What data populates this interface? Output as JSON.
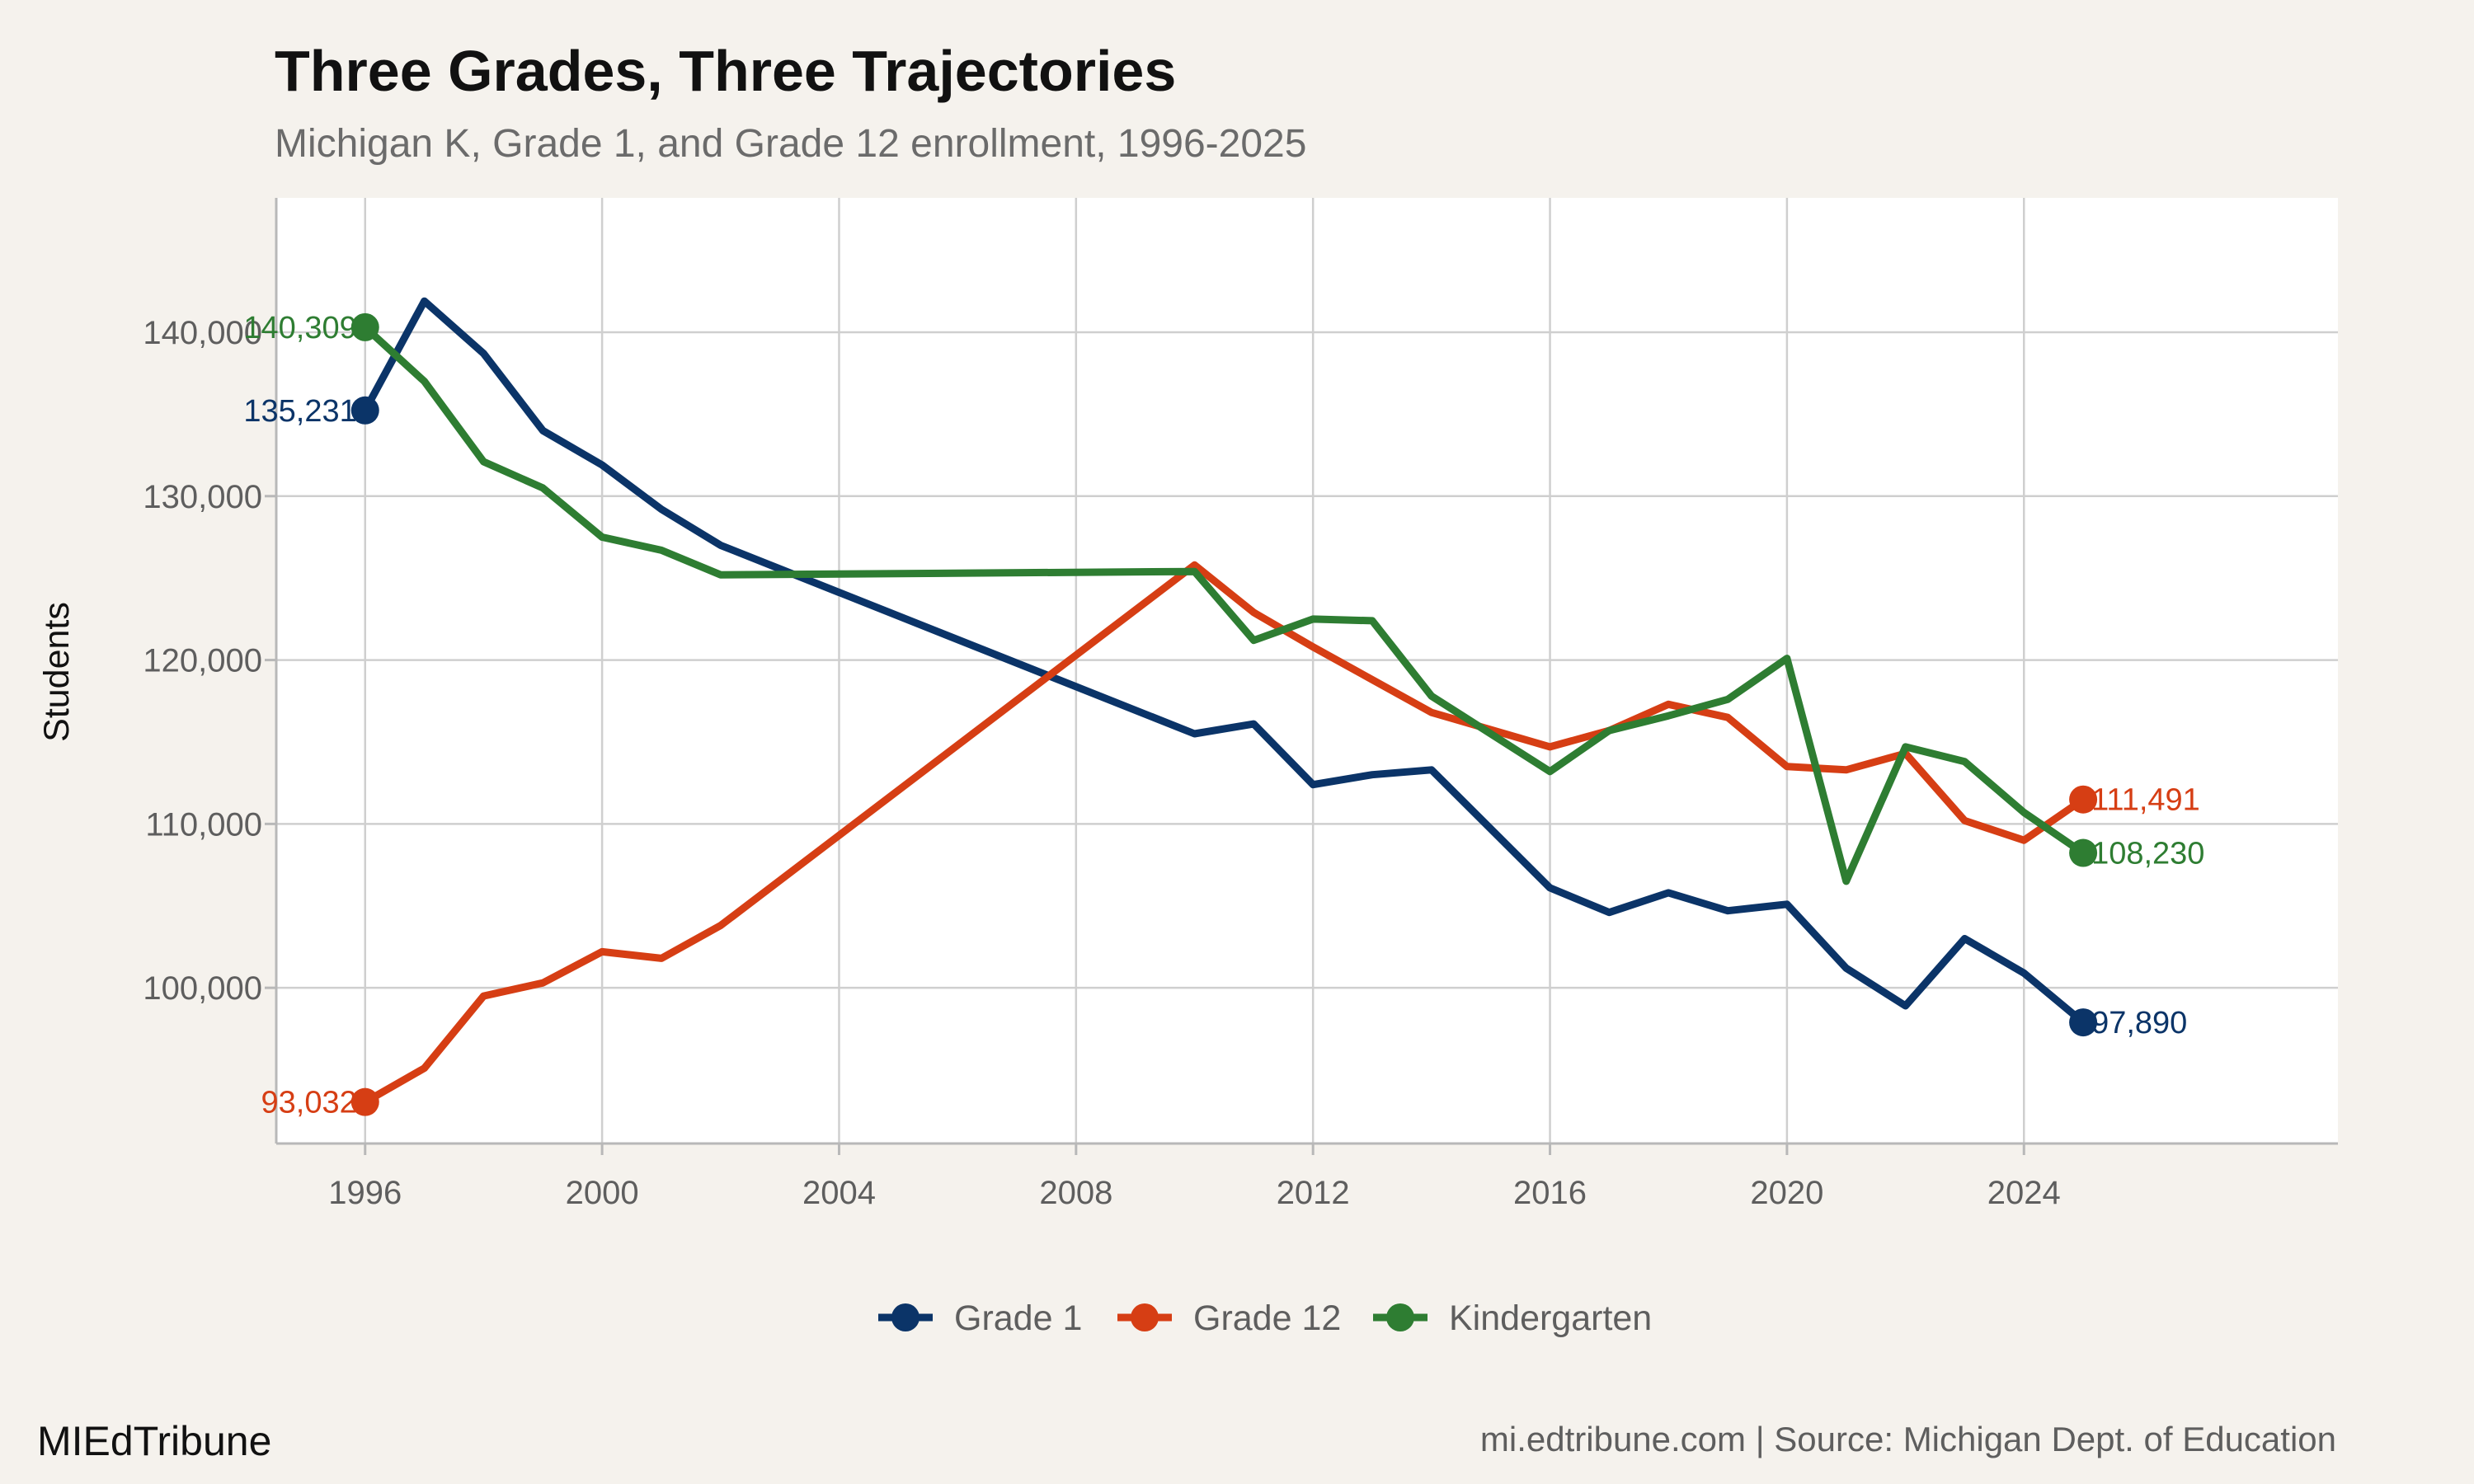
{
  "brand": "MIEdTribune",
  "source_note": "mi.edtribune.com | Source: Michigan Dept. of Education",
  "chart_data": {
    "type": "line",
    "title": "Three Grades, Three Trajectories",
    "subtitle": "Michigan K, Grade 1, and Grade 12 enrollment, 1996-2025",
    "xlabel": "",
    "ylabel": "Students",
    "xlim": [
      1994.5,
      2029.3
    ],
    "ylim": [
      90500,
      148200
    ],
    "xticks": [
      1996,
      2000,
      2004,
      2008,
      2012,
      2016,
      2020,
      2024
    ],
    "xtick_labels": [
      "1996",
      "2000",
      "2004",
      "2008",
      "2012",
      "2016",
      "2020",
      "2024"
    ],
    "yticks": [
      100000,
      110000,
      120000,
      130000,
      140000
    ],
    "ytick_labels": [
      "100,000",
      "110,000",
      "120,000",
      "130,000",
      "140,000"
    ],
    "grid": true,
    "legend_position": "bottom",
    "series": [
      {
        "name": "Grade 1",
        "color": "#0b3468",
        "x": [
          1996,
          1997,
          1998,
          1999,
          2000,
          2001,
          2002,
          2010,
          2011,
          2012,
          2013,
          2014,
          2016,
          2017,
          2018,
          2019,
          2020,
          2021,
          2022,
          2023,
          2024,
          2025
        ],
        "y": [
          135231,
          141900,
          138700,
          134000,
          131900,
          129200,
          127000,
          115500,
          116100,
          112400,
          113000,
          113300,
          106100,
          104600,
          105800,
          104700,
          105100,
          101200,
          98900,
          103000,
          100900,
          97890
        ],
        "start_label": "135,231",
        "end_label": "97,890"
      },
      {
        "name": "Grade 12",
        "color": "#d63e14",
        "x": [
          1996,
          1997,
          1998,
          1999,
          2000,
          2001,
          2002,
          2010,
          2011,
          2012,
          2013,
          2014,
          2016,
          2017,
          2018,
          2019,
          2020,
          2021,
          2022,
          2023,
          2024,
          2025
        ],
        "y": [
          93032,
          95100,
          99500,
          100300,
          102200,
          101800,
          103800,
          125800,
          122900,
          120800,
          118800,
          116800,
          114700,
          115700,
          117300,
          116500,
          113500,
          113300,
          114300,
          110200,
          109000,
          111491
        ],
        "start_label": "93,032",
        "end_label": "111,491"
      },
      {
        "name": "Kindergarten",
        "color": "#2e7d32",
        "x": [
          1996,
          1997,
          1998,
          1999,
          2000,
          2001,
          2002,
          2010,
          2011,
          2012,
          2013,
          2014,
          2016,
          2017,
          2018,
          2019,
          2020,
          2021,
          2022,
          2023,
          2024,
          2025
        ],
        "y": [
          140309,
          137000,
          132100,
          130500,
          127500,
          126700,
          125200,
          125400,
          121200,
          122500,
          122400,
          117800,
          113200,
          115700,
          116600,
          117600,
          120100,
          106500,
          114700,
          113800,
          110700,
          108230
        ],
        "start_label": "140,309",
        "end_label": "108,230"
      }
    ]
  }
}
